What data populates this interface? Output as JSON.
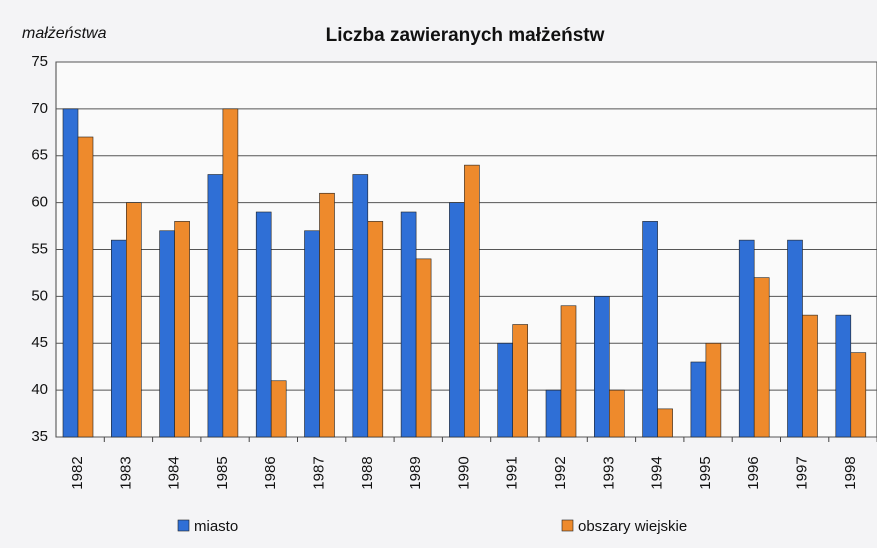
{
  "chart_data": {
    "type": "bar",
    "title": "Liczba zawieranych małżeństw",
    "y_label": "małżeństwa",
    "categories": [
      "1982",
      "1983",
      "1984",
      "1985",
      "1986",
      "1987",
      "1988",
      "1989",
      "1990",
      "1991",
      "1992",
      "1993",
      "1994",
      "1995",
      "1996",
      "1997",
      "1998"
    ],
    "series": [
      {
        "name": "miasto",
        "color": "#2f6fd6",
        "values": [
          70,
          56,
          57,
          63,
          59,
          57,
          63,
          59,
          60,
          45,
          40,
          50,
          58,
          43,
          56,
          56,
          48
        ]
      },
      {
        "name": "obszary wiejskie",
        "color": "#ee8a2c",
        "values": [
          67,
          60,
          58,
          70,
          41,
          61,
          58,
          54,
          64,
          47,
          49,
          40,
          38,
          45,
          52,
          48,
          44
        ]
      }
    ],
    "ylim": [
      35,
      75
    ],
    "yticks": [
      35,
      40,
      45,
      50,
      55,
      60,
      65,
      70,
      75
    ],
    "grid": true
  }
}
